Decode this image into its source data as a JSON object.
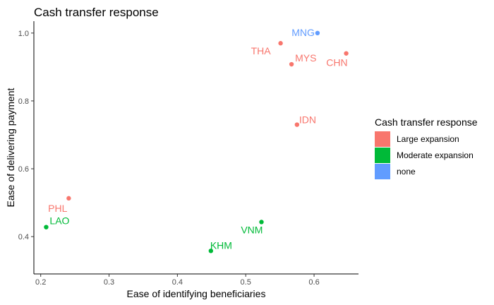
{
  "chart_data": {
    "type": "scatter",
    "title": "Cash transfer response",
    "xlabel": "Ease of identifying beneficiaries",
    "ylabel": "Ease of delivering payment",
    "xlim": [
      0.19,
      0.665
    ],
    "ylim": [
      0.29,
      1.035
    ],
    "x_ticks": [
      0.2,
      0.3,
      0.4,
      0.5,
      0.6
    ],
    "x_tick_labels": [
      "0.2",
      "0.3",
      "0.4",
      "0.5",
      "0.6"
    ],
    "y_ticks": [
      0.4,
      0.6,
      0.8,
      1.0
    ],
    "y_tick_labels": [
      "0.4",
      "0.6",
      "0.8",
      "1.0"
    ],
    "grid": false,
    "legend": {
      "title": "Cash transfer response",
      "position": "right",
      "entries": [
        {
          "label": "Large expansion",
          "color": "#F8766D"
        },
        {
          "label": "Moderate expansion",
          "color": "#00BA38"
        },
        {
          "label": "none",
          "color": "#619CFF"
        }
      ]
    },
    "points": [
      {
        "label": "THA",
        "x": 0.551,
        "y": 0.97,
        "group": "Large expansion"
      },
      {
        "label": "MNG",
        "x": 0.605,
        "y": 1.0,
        "group": "none"
      },
      {
        "label": "MYS",
        "x": 0.567,
        "y": 0.908,
        "group": "Large expansion"
      },
      {
        "label": "CHN",
        "x": 0.647,
        "y": 0.94,
        "group": "Large expansion"
      },
      {
        "label": "IDN",
        "x": 0.575,
        "y": 0.73,
        "group": "Large expansion"
      },
      {
        "label": "PHL",
        "x": 0.241,
        "y": 0.513,
        "group": "Large expansion"
      },
      {
        "label": "LAO",
        "x": 0.208,
        "y": 0.428,
        "group": "Moderate expansion"
      },
      {
        "label": "VNM",
        "x": 0.523,
        "y": 0.443,
        "group": "Moderate expansion"
      },
      {
        "label": "KHM",
        "x": 0.449,
        "y": 0.358,
        "group": "Moderate expansion"
      }
    ]
  }
}
